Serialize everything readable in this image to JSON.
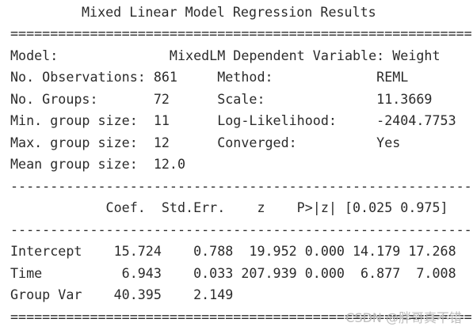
{
  "report": {
    "title": "Mixed Linear Model Regression Results",
    "rule_double_top": "==========================================================",
    "header_rows": [
      "Model:              MixedLM Dependent Variable: Weight",
      "No. Observations: 861     Method:             REML",
      "No. Groups:       72      Scale:              11.3669",
      "Min. group size:  11      Log-Likelihood:     -2404.7753",
      "Max. group size:  12      Converged:          Yes",
      "Mean group size:  12.0"
    ],
    "rule_single_top": "----------------------------------------------------------",
    "column_headers": "            Coef.  Std.Err.    z    P>|z| [0.025 0.975]",
    "rule_single_mid": "----------------------------------------------------------",
    "coef_rows": [
      "Intercept    15.724    0.788  19.952 0.000 14.179 17.268",
      "Time          6.943    0.033 207.939 0.000  6.877  7.008",
      "Group Var    40.395    2.149"
    ],
    "rule_double_bottom": "==========================================================",
    "watermark": "CSDN @胖哥真不错"
  }
}
